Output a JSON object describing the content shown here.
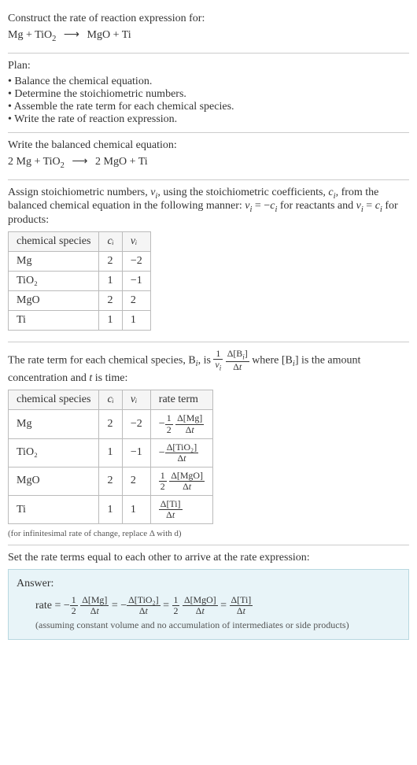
{
  "intro": {
    "prompt": "Construct the rate of reaction expression for:",
    "reactant1": "Mg",
    "plus": " + ",
    "reactant2_base": "TiO",
    "reactant2_sub": "2",
    "arrow": "⟶",
    "product1": "MgO",
    "product2": "Ti"
  },
  "plan": {
    "heading": "Plan:",
    "items": [
      "Balance the chemical equation.",
      "Determine the stoichiometric numbers.",
      "Assemble the rate term for each chemical species.",
      "Write the rate of reaction expression."
    ]
  },
  "balanced": {
    "heading": "Write the balanced chemical equation:",
    "coef1": "2",
    "sp1": "Mg",
    "sp2_base": "TiO",
    "sp2_sub": "2",
    "coef3": "2",
    "sp3": "MgO",
    "sp4": "Ti"
  },
  "stoich": {
    "text_a": "Assign stoichiometric numbers, ",
    "nu_i": "ν",
    "sub_i": "i",
    "text_b": ", using the stoichiometric coefficients, ",
    "c_i": "c",
    "text_c": ", from the balanced chemical equation in the following manner: ",
    "eq1_lhs": "ν",
    "eq1_eq": " = −",
    "eq1_rhs": "c",
    "text_d": " for reactants and ",
    "eq2_lhs": "ν",
    "eq2_eq": " = ",
    "eq2_rhs": "c",
    "text_e": " for products:",
    "table": {
      "headers": [
        "chemical species",
        "cᵢ",
        "νᵢ"
      ],
      "rows": [
        [
          "Mg",
          "2",
          "−2"
        ],
        [
          "TiO₂",
          "1",
          "−1"
        ],
        [
          "MgO",
          "2",
          "2"
        ],
        [
          "Ti",
          "1",
          "1"
        ]
      ]
    }
  },
  "rateterm": {
    "text_a": "The rate term for each chemical species, B",
    "text_b": ", is ",
    "frac1_num": "1",
    "frac1_den_sym": "ν",
    "frac2_num_a": "Δ[B",
    "frac2_num_b": "]",
    "frac2_den_a": "Δ",
    "frac2_den_b": "t",
    "text_c": " where [B",
    "text_d": "] is the amount concentration and ",
    "t": "t",
    "text_e": " is time:",
    "table": {
      "headers": [
        "chemical species",
        "cᵢ",
        "νᵢ",
        "rate term"
      ],
      "rows": [
        {
          "sp": "Mg",
          "c": "2",
          "nu": "−2",
          "sign": "−",
          "coef_num": "1",
          "coef_den": "2",
          "dnum": "Δ[Mg]",
          "dden_a": "Δ",
          "dden_b": "t"
        },
        {
          "sp": "TiO₂",
          "c": "1",
          "nu": "−1",
          "sign": "−",
          "coef_num": "",
          "coef_den": "",
          "dnum": "Δ[TiO₂]",
          "dden_a": "Δ",
          "dden_b": "t"
        },
        {
          "sp": "MgO",
          "c": "2",
          "nu": "2",
          "sign": "",
          "coef_num": "1",
          "coef_den": "2",
          "dnum": "Δ[MgO]",
          "dden_a": "Δ",
          "dden_b": "t"
        },
        {
          "sp": "Ti",
          "c": "1",
          "nu": "1",
          "sign": "",
          "coef_num": "",
          "coef_den": "",
          "dnum": "Δ[Ti]",
          "dden_a": "Δ",
          "dden_b": "t"
        }
      ]
    },
    "note": "(for infinitesimal rate of change, replace Δ with d)"
  },
  "final": {
    "heading": "Set the rate terms equal to each other to arrive at the rate expression:",
    "answer_label": "Answer:",
    "rate_label": "rate = ",
    "terms": [
      {
        "sign": "−",
        "coef_num": "1",
        "coef_den": "2",
        "dnum": "Δ[Mg]",
        "dden_a": "Δ",
        "dden_b": "t"
      },
      {
        "sign": "−",
        "coef_num": "",
        "coef_den": "",
        "dnum": "Δ[TiO₂]",
        "dden_a": "Δ",
        "dden_b": "t"
      },
      {
        "sign": "",
        "coef_num": "1",
        "coef_den": "2",
        "dnum": "Δ[MgO]",
        "dden_a": "Δ",
        "dden_b": "t"
      },
      {
        "sign": "",
        "coef_num": "",
        "coef_den": "",
        "dnum": "Δ[Ti]",
        "dden_a": "Δ",
        "dden_b": "t"
      }
    ],
    "eq": " = ",
    "note": "(assuming constant volume and no accumulation of intermediates or side products)"
  },
  "colors": {
    "answer_bg": "#e8f4f8",
    "answer_border": "#b8d8e0",
    "divider": "#cccccc",
    "text": "#333333"
  }
}
